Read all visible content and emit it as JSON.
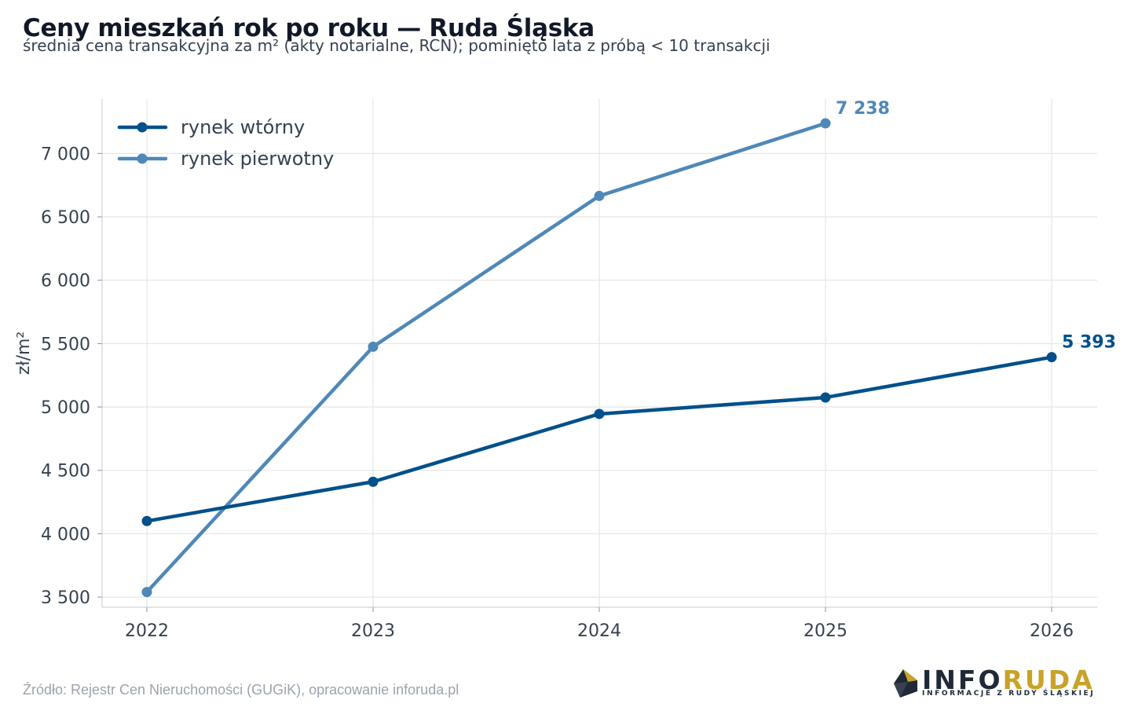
{
  "chart_data": {
    "type": "line",
    "title": "Ceny mieszkań rok po roku — Ruda Śląska",
    "subtitle": "średnia cena transakcyjna za m² (akty notarialne, RCN); pominięto lata z próbą < 10 transakcji",
    "xlabel": "",
    "ylabel": "zł/m²",
    "x": [
      "2022",
      "2023",
      "2024",
      "2025",
      "2026"
    ],
    "ylim": [
      3420,
      7430
    ],
    "yticks": [
      3500,
      4000,
      4500,
      5000,
      5500,
      6000,
      6500,
      7000
    ],
    "ytick_labels": [
      "3 500",
      "4 000",
      "4 500",
      "5 000",
      "5 500",
      "6 000",
      "6 500",
      "7 000"
    ],
    "grid": true,
    "legend_position": "top-left",
    "series": [
      {
        "name": "rynek wtórny",
        "color": "#00508a",
        "values": [
          4100,
          4410,
          4945,
          5075,
          5393
        ],
        "end_label": "5 393"
      },
      {
        "name": "rynek pierwotny",
        "color": "#4f88b8",
        "values": [
          3540,
          5475,
          6665,
          7238,
          null
        ],
        "end_label": "7 238"
      }
    ]
  },
  "source": "Źródło: Rejestr Cen Nieruchomości (GUGiK), opracowanie inforuda.pl",
  "logo": {
    "text_a": "INFO",
    "text_b": "RUDA",
    "tagline": "INFORMACJE Z RUDY ŚLĄSKIEJ"
  }
}
